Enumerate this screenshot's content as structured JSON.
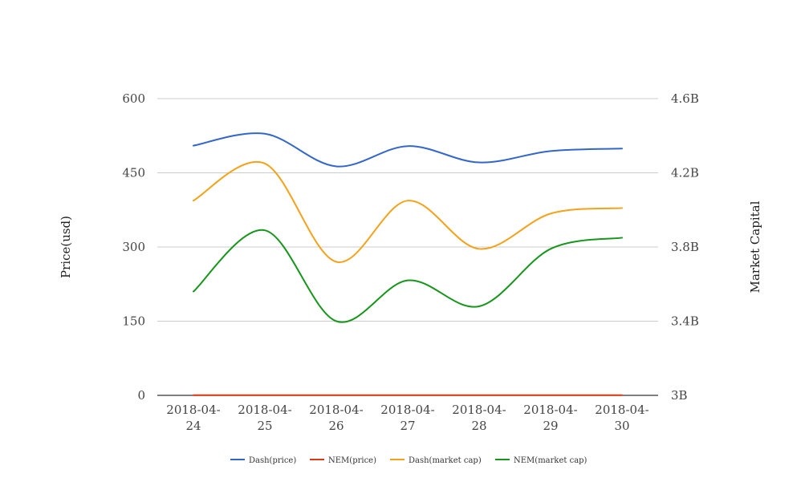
{
  "colors": {
    "dash_price": "#3366cc",
    "nem_price": "#dc3912",
    "dash_cap": "#f5a11a",
    "nem_cap": "#16961a",
    "grid": "#cccccc",
    "axis": "#333333"
  },
  "chart_data": {
    "type": "line",
    "categories": [
      [
        "2018-04-",
        "24"
      ],
      [
        "2018-04-",
        "25"
      ],
      [
        "2018-04-",
        "26"
      ],
      [
        "2018-04-",
        "27"
      ],
      [
        "2018-04-",
        "28"
      ],
      [
        "2018-04-",
        "29"
      ],
      [
        "2018-04-",
        "30"
      ]
    ],
    "ylabel_left": "Price(usd)",
    "ylabel_right": "Market Capital",
    "left_axis": {
      "min": 0,
      "max": 600,
      "ticks": [
        0,
        150,
        300,
        450,
        600
      ],
      "tick_labels": [
        "0",
        "150",
        "300",
        "450",
        "600"
      ]
    },
    "right_axis": {
      "min": 3.0,
      "max": 4.6,
      "ticks": [
        3.0,
        3.4,
        3.8,
        4.2,
        4.6
      ],
      "tick_labels": [
        "3B",
        "3.4B",
        "3.8B",
        "4.2B",
        "4.6B"
      ]
    },
    "grid": true,
    "legend_position": "bottom",
    "series": [
      {
        "name": "Dash(price)",
        "axis": "left",
        "color_key": "dash_price",
        "values": [
          505,
          529,
          463,
          504,
          471,
          494,
          499
        ]
      },
      {
        "name": "NEM(price)",
        "axis": "left",
        "color_key": "nem_price",
        "values": [
          0.4,
          0.43,
          0.37,
          0.4,
          0.38,
          0.41,
          0.42
        ]
      },
      {
        "name": "Dash(market cap)",
        "axis": "right",
        "color_key": "dash_cap",
        "values": [
          4.05,
          4.25,
          3.72,
          4.05,
          3.79,
          3.98,
          4.01
        ]
      },
      {
        "name": "NEM(market cap)",
        "axis": "right",
        "color_key": "nem_cap",
        "values": [
          3.56,
          3.89,
          3.4,
          3.62,
          3.48,
          3.79,
          3.85
        ]
      }
    ]
  }
}
